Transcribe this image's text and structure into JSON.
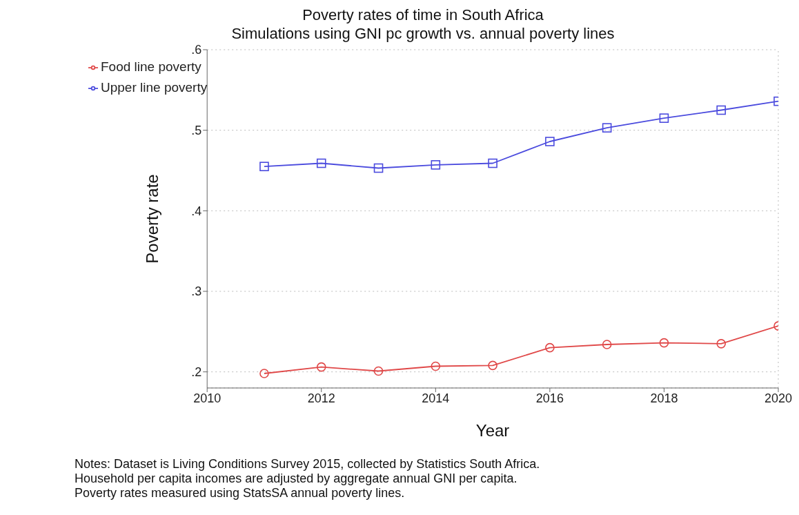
{
  "chart_data": {
    "type": "line",
    "title": "Poverty rates of time in South Africa",
    "subtitle": "Simulations using GNI pc growth vs. annual poverty lines",
    "xlabel": "Year",
    "ylabel": "Poverty rate",
    "x": [
      2011,
      2012,
      2013,
      2014,
      2015,
      2016,
      2017,
      2018,
      2019,
      2020
    ],
    "series": [
      {
        "name": "Upper line poverty",
        "color": "#4b4bde",
        "marker": "square",
        "values": [
          0.455,
          0.459,
          0.453,
          0.457,
          0.459,
          0.486,
          0.503,
          0.515,
          0.525,
          0.536
        ]
      },
      {
        "name": "Food line poverty",
        "color": "#e04848",
        "marker": "circle",
        "values": [
          0.198,
          0.206,
          0.201,
          0.207,
          0.208,
          0.23,
          0.234,
          0.236,
          0.235,
          0.257
        ]
      }
    ],
    "xlim": [
      2010,
      2020
    ],
    "xticks": [
      2010,
      2012,
      2014,
      2016,
      2018,
      2020
    ],
    "ylim": [
      0.18,
      0.6
    ],
    "yticks": [
      {
        "value": 0.2,
        "label": ".2"
      },
      {
        "value": 0.3,
        "label": ".3"
      },
      {
        "value": 0.4,
        "label": ".4"
      },
      {
        "value": 0.5,
        "label": ".5"
      },
      {
        "value": 0.6,
        "label": ".6"
      }
    ],
    "grid": "y",
    "legend": "top left",
    "line_style": "solid",
    "annotations": [
      "Notes: Dataset is Living Conditions Survey 2015, collected by Statistics South Africa.",
      "Household per capita incomes are adjusted by aggregate annual GNI per capita.",
      "Poverty rates measured using StatsSA annual poverty lines."
    ]
  }
}
